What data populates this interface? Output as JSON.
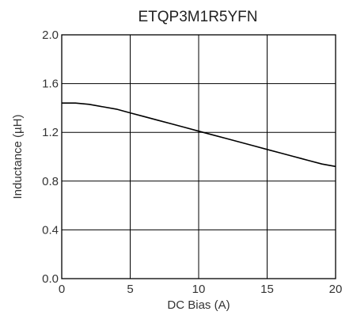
{
  "chart_data": {
    "type": "line",
    "title": "ETQP3M1R5YFN",
    "xlabel": "DC Bias (A)",
    "ylabel": "Inductance (µH)",
    "xlim": [
      0,
      20
    ],
    "ylim": [
      0,
      2.0
    ],
    "xticks": [
      "0",
      "5",
      "10",
      "15",
      "20"
    ],
    "yticks": [
      "0.0",
      "0.4",
      "0.8",
      "1.2",
      "1.6",
      "2.0"
    ],
    "grid": true,
    "series": [
      {
        "x": [
          0,
          1,
          2,
          3,
          4,
          5,
          6,
          7,
          8,
          9,
          10,
          11,
          12,
          13,
          14,
          15,
          16,
          17,
          18,
          19,
          20
        ],
        "y": [
          1.44,
          1.44,
          1.43,
          1.41,
          1.39,
          1.36,
          1.33,
          1.3,
          1.27,
          1.24,
          1.21,
          1.18,
          1.15,
          1.12,
          1.09,
          1.06,
          1.03,
          1.0,
          0.97,
          0.94,
          0.92
        ]
      }
    ]
  }
}
